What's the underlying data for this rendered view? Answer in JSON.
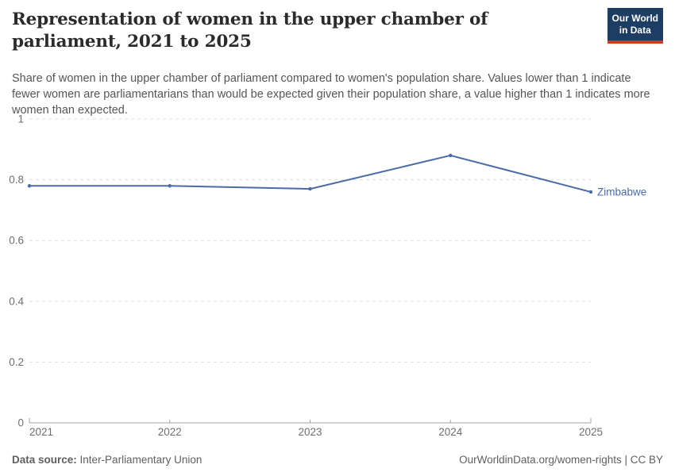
{
  "header": {
    "title": "Representation of women in the upper chamber of parliament, 2021 to 2025",
    "subtitle": "Share of women in the upper chamber of parliament compared to women's population share. Values lower than 1 indicate fewer women are parliamentarians than would be expected given their population share, a value higher than 1 indicates more women than expected."
  },
  "logo": {
    "line1": "Our World",
    "line2": "in Data",
    "bg_color": "#1d3d63",
    "accent_color": "#d8352e"
  },
  "chart_data": {
    "type": "line",
    "title": "Representation of women in the upper chamber of parliament, 2021 to 2025",
    "xlabel": "",
    "ylabel": "",
    "x": [
      2021,
      2022,
      2023,
      2024,
      2025
    ],
    "series": [
      {
        "name": "Zimbabwe",
        "color": "#4a6ba5",
        "values": [
          0.78,
          0.78,
          0.77,
          0.88,
          0.76
        ]
      }
    ],
    "ylim": [
      0,
      1
    ],
    "yticks": [
      0,
      0.2,
      0.4,
      0.6,
      0.8,
      1
    ],
    "grid": true,
    "legend": "line-end-label"
  },
  "colors": {
    "line": "#4a6ba5",
    "grid": "#dedede",
    "axis": "#a5a5a5",
    "tick_text": "#6e6e6e"
  },
  "footer": {
    "datasource_label": "Data source:",
    "datasource_value": "Inter-Parliamentary Union",
    "link": "OurWorldinData.org/women-rights | CC BY"
  }
}
